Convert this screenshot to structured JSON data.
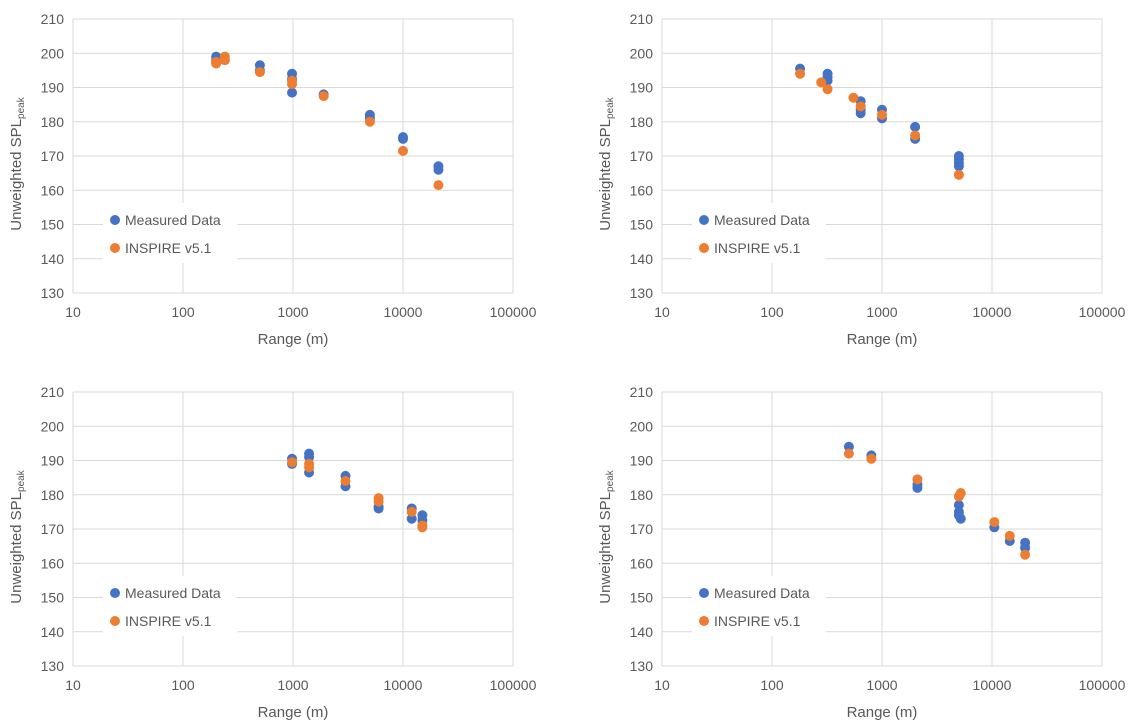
{
  "colors": {
    "measured": "#4472C4",
    "inspire": "#ED7D31",
    "grid": "#D9D9D9",
    "axis_text": "#595959"
  },
  "chart_data": [
    {
      "type": "scatter",
      "xlabel": "Range  (m)",
      "ylabel": "Unweighted  SPL",
      "ylabel_sub": "peak",
      "xscale": "log",
      "xlim": [
        10,
        100000
      ],
      "ylim": [
        130,
        210
      ],
      "xticks": [
        "10",
        "100",
        "1000",
        "10000",
        "100000"
      ],
      "yticks": [
        "130",
        "140",
        "150",
        "160",
        "170",
        "180",
        "190",
        "200",
        "210"
      ],
      "grid": true,
      "legend_position": "bottom-left",
      "series": [
        {
          "name": "Measured Data",
          "points": [
            [
              200,
              199
            ],
            [
              200,
              198
            ],
            [
              240,
              198
            ],
            [
              500,
              196.5
            ],
            [
              500,
              195
            ],
            [
              980,
              194
            ],
            [
              980,
              192.5
            ],
            [
              980,
              188.5
            ],
            [
              1900,
              188
            ],
            [
              5000,
              182
            ],
            [
              5000,
              181
            ],
            [
              10000,
              175.5
            ],
            [
              10000,
              175
            ],
            [
              21000,
              167
            ],
            [
              21000,
              166
            ]
          ]
        },
        {
          "name": "INSPIRE v5.1",
          "points": [
            [
              200,
              197.5
            ],
            [
              200,
              197
            ],
            [
              240,
              199
            ],
            [
              240,
              198
            ],
            [
              500,
              194.5
            ],
            [
              980,
              192
            ],
            [
              980,
              191
            ],
            [
              1900,
              187.5
            ],
            [
              5000,
              180
            ],
            [
              10000,
              171.5
            ],
            [
              21000,
              161.5
            ]
          ]
        }
      ]
    },
    {
      "type": "scatter",
      "xlabel": "Range  (m)",
      "ylabel": "Unweighted  SPL",
      "ylabel_sub": "peak",
      "xscale": "log",
      "xlim": [
        10,
        100000
      ],
      "ylim": [
        130,
        210
      ],
      "xticks": [
        "10",
        "100",
        "1000",
        "10000",
        "100000"
      ],
      "yticks": [
        "130",
        "140",
        "150",
        "160",
        "170",
        "180",
        "190",
        "200",
        "210"
      ],
      "grid": true,
      "legend_position": "bottom-left",
      "series": [
        {
          "name": "Measured Data",
          "points": [
            [
              180,
              195.5
            ],
            [
              320,
              194
            ],
            [
              320,
              193
            ],
            [
              320,
              192
            ],
            [
              640,
              186
            ],
            [
              640,
              183.5
            ],
            [
              640,
              182.5
            ],
            [
              1000,
              183.5
            ],
            [
              1000,
              181
            ],
            [
              2000,
              178.5
            ],
            [
              2000,
              175
            ],
            [
              5000,
              170
            ],
            [
              5000,
              169
            ],
            [
              5000,
              168
            ],
            [
              5000,
              167
            ]
          ]
        },
        {
          "name": "INSPIRE v5.1",
          "points": [
            [
              180,
              194
            ],
            [
              280,
              191.5
            ],
            [
              320,
              189.5
            ],
            [
              550,
              187
            ],
            [
              640,
              184.5
            ],
            [
              1000,
              182
            ],
            [
              2000,
              176
            ],
            [
              5000,
              164.5
            ]
          ]
        }
      ]
    },
    {
      "type": "scatter",
      "xlabel": "Range  (m)",
      "ylabel": "Unweighted  SPL",
      "ylabel_sub": "peak",
      "xscale": "log",
      "xlim": [
        10,
        100000
      ],
      "ylim": [
        130,
        210
      ],
      "xticks": [
        "10",
        "100",
        "1000",
        "10000",
        "100000"
      ],
      "yticks": [
        "130",
        "140",
        "150",
        "160",
        "170",
        "180",
        "190",
        "200",
        "210"
      ],
      "grid": true,
      "legend_position": "bottom-left",
      "series": [
        {
          "name": "Measured Data",
          "points": [
            [
              980,
              190.5
            ],
            [
              980,
              189
            ],
            [
              1400,
              192
            ],
            [
              1400,
              191
            ],
            [
              1400,
              186.5
            ],
            [
              3000,
              185.5
            ],
            [
              3000,
              182.5
            ],
            [
              6000,
              176.5
            ],
            [
              6000,
              176
            ],
            [
              12000,
              176
            ],
            [
              12000,
              173
            ],
            [
              15000,
              174
            ],
            [
              15000,
              172.5
            ]
          ]
        },
        {
          "name": "INSPIRE v5.1",
          "points": [
            [
              980,
              189.5
            ],
            [
              1400,
              189
            ],
            [
              1400,
              188
            ],
            [
              3000,
              184
            ],
            [
              6000,
              179
            ],
            [
              6000,
              178
            ],
            [
              12000,
              175
            ],
            [
              15000,
              171
            ],
            [
              15000,
              170.5
            ]
          ]
        }
      ]
    },
    {
      "type": "scatter",
      "xlabel": "Range  (m)",
      "ylabel": "Unweighted  SPL",
      "ylabel_sub": "peak",
      "xscale": "log",
      "xlim": [
        10,
        100000
      ],
      "ylim": [
        130,
        210
      ],
      "xticks": [
        "10",
        "100",
        "1000",
        "10000",
        "100000"
      ],
      "yticks": [
        "130",
        "140",
        "150",
        "160",
        "170",
        "180",
        "190",
        "200",
        "210"
      ],
      "grid": true,
      "legend_position": "bottom-left",
      "series": [
        {
          "name": "Measured Data",
          "points": [
            [
              500,
              194
            ],
            [
              800,
              191.5
            ],
            [
              2100,
              183
            ],
            [
              2100,
              182
            ],
            [
              5000,
              177
            ],
            [
              5000,
              175
            ],
            [
              5000,
              174
            ],
            [
              5200,
              173
            ],
            [
              10500,
              170.5
            ],
            [
              14500,
              166.5
            ],
            [
              20000,
              166
            ],
            [
              20000,
              164.5
            ]
          ]
        },
        {
          "name": "INSPIRE v5.1",
          "points": [
            [
              500,
              192
            ],
            [
              800,
              190.5
            ],
            [
              2100,
              184.5
            ],
            [
              5000,
              179.5
            ],
            [
              5200,
              180.5
            ],
            [
              10500,
              172
            ],
            [
              14500,
              168
            ],
            [
              20000,
              162.5
            ]
          ]
        }
      ]
    }
  ]
}
